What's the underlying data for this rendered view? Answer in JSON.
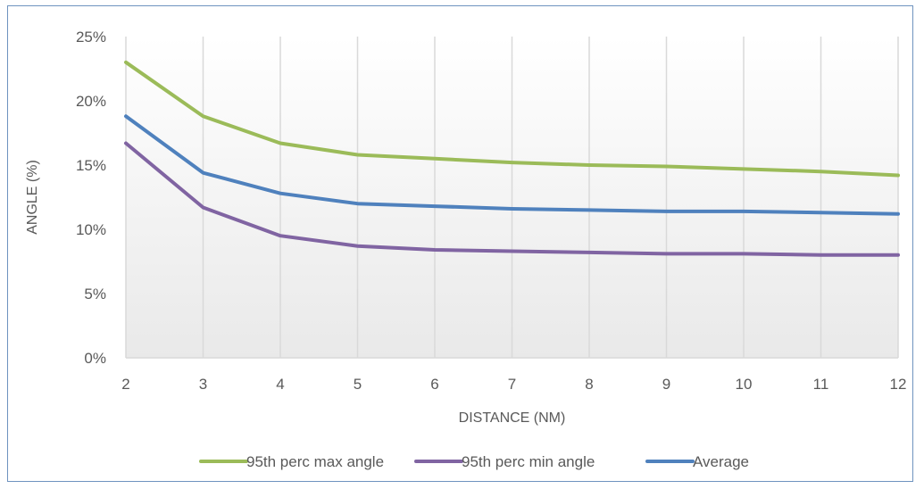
{
  "chart_data": {
    "type": "line",
    "title": "",
    "xlabel": "DISTANCE (NM)",
    "ylabel": "ANGLE (%)",
    "x": [
      2,
      3,
      4,
      5,
      6,
      7,
      8,
      9,
      10,
      11,
      12
    ],
    "ylim": [
      0,
      25
    ],
    "y_ticks": [
      0,
      5,
      10,
      15,
      20,
      25
    ],
    "y_tick_labels": [
      "0%",
      "5%",
      "10%",
      "15%",
      "20%",
      "25%"
    ],
    "x_tick_labels": [
      "2",
      "3",
      "4",
      "5",
      "6",
      "7",
      "8",
      "9",
      "10",
      "11",
      "12"
    ],
    "vertical_grid": true,
    "legend_position": "bottom",
    "series": [
      {
        "name": "95th perc max angle",
        "color": "#9bbb59",
        "values": [
          23.0,
          18.8,
          16.7,
          15.8,
          15.5,
          15.2,
          15.0,
          14.9,
          14.7,
          14.5,
          14.2
        ]
      },
      {
        "name": "95th perc min angle",
        "color": "#8064a2",
        "values": [
          16.7,
          11.7,
          9.5,
          8.7,
          8.4,
          8.3,
          8.2,
          8.1,
          8.1,
          8.0,
          8.0
        ]
      },
      {
        "name": "Average",
        "color": "#4f81bd",
        "values": [
          18.8,
          14.4,
          12.8,
          12.0,
          11.8,
          11.6,
          11.5,
          11.4,
          11.4,
          11.3,
          11.2
        ]
      }
    ]
  }
}
